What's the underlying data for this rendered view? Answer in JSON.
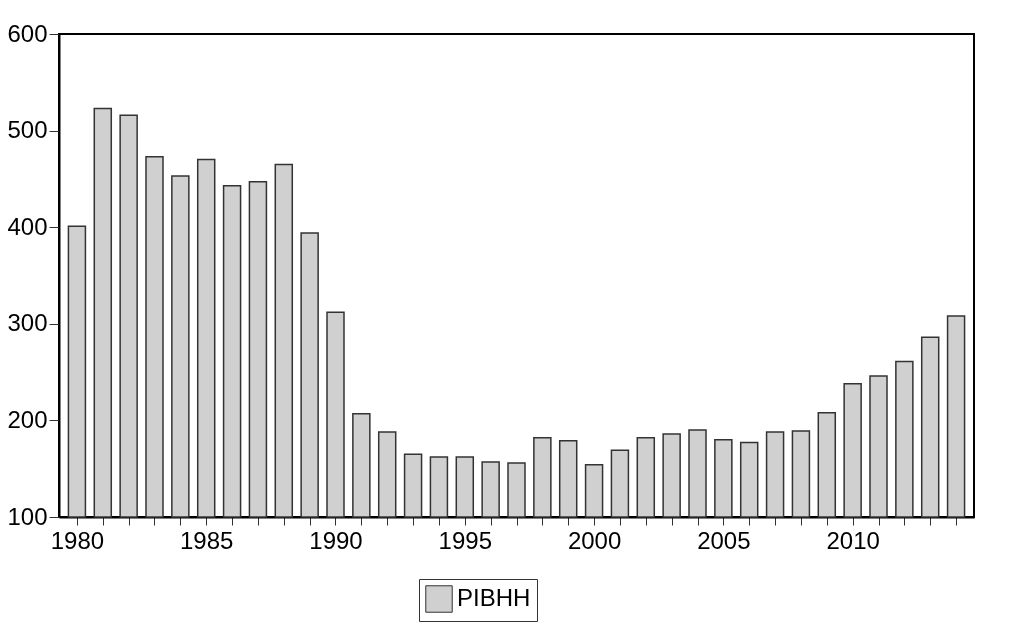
{
  "chart_data": {
    "type": "bar",
    "x": [
      1980,
      1981,
      1982,
      1983,
      1984,
      1985,
      1986,
      1987,
      1988,
      1989,
      1990,
      1991,
      1992,
      1993,
      1994,
      1995,
      1996,
      1997,
      1998,
      1999,
      2000,
      2001,
      2002,
      2003,
      2004,
      2005,
      2006,
      2007,
      2008,
      2009,
      2010,
      2011,
      2012,
      2013,
      2014
    ],
    "series": [
      {
        "name": "PIBHH",
        "color": "#d0d0d0",
        "values": [
          401,
          523,
          516,
          473,
          453,
          470,
          443,
          447,
          465,
          394,
          312,
          207,
          188,
          165,
          162,
          162,
          157,
          156,
          182,
          179,
          154,
          169,
          182,
          186,
          190,
          180,
          177,
          188,
          189,
          208,
          238,
          246,
          261,
          286,
          308
        ]
      }
    ],
    "xlim": [
      1979.5,
      2014.5
    ],
    "xticks": [
      1980,
      {
        "value": 1981,
        "label": null
      },
      {
        "value": 1982,
        "label": null
      },
      {
        "value": 1983,
        "label": null
      },
      {
        "value": 1984,
        "label": null
      },
      1985,
      {
        "value": 1986,
        "label": null
      },
      {
        "value": 1987,
        "label": null
      },
      {
        "value": 1988,
        "label": null
      },
      {
        "value": 1989,
        "label": null
      },
      1990,
      {
        "value": 1991,
        "label": null
      },
      {
        "value": 1992,
        "label": null
      },
      {
        "value": 1993,
        "label": null
      },
      {
        "value": 1994,
        "label": null
      },
      1995,
      {
        "value": 1996,
        "label": null
      },
      {
        "value": 1997,
        "label": null
      },
      {
        "value": 1998,
        "label": null
      },
      {
        "value": 1999,
        "label": null
      },
      2000,
      {
        "value": 2001,
        "label": null
      },
      {
        "value": 2002,
        "label": null
      },
      {
        "value": 2003,
        "label": null
      },
      {
        "value": 2004,
        "label": null
      },
      2005,
      {
        "value": 2006,
        "label": null
      },
      {
        "value": 2007,
        "label": null
      },
      {
        "value": 2008,
        "label": null
      },
      {
        "value": 2009,
        "label": null
      },
      2010,
      {
        "value": 2011,
        "label": null
      },
      {
        "value": 2012,
        "label": null
      },
      {
        "value": 2013,
        "label": null
      },
      {
        "value": 2014,
        "label": null
      }
    ],
    "ylim": [
      100,
      600
    ],
    "yticks": [
      100,
      200,
      300,
      400,
      500,
      600
    ],
    "legend": "bottom"
  }
}
